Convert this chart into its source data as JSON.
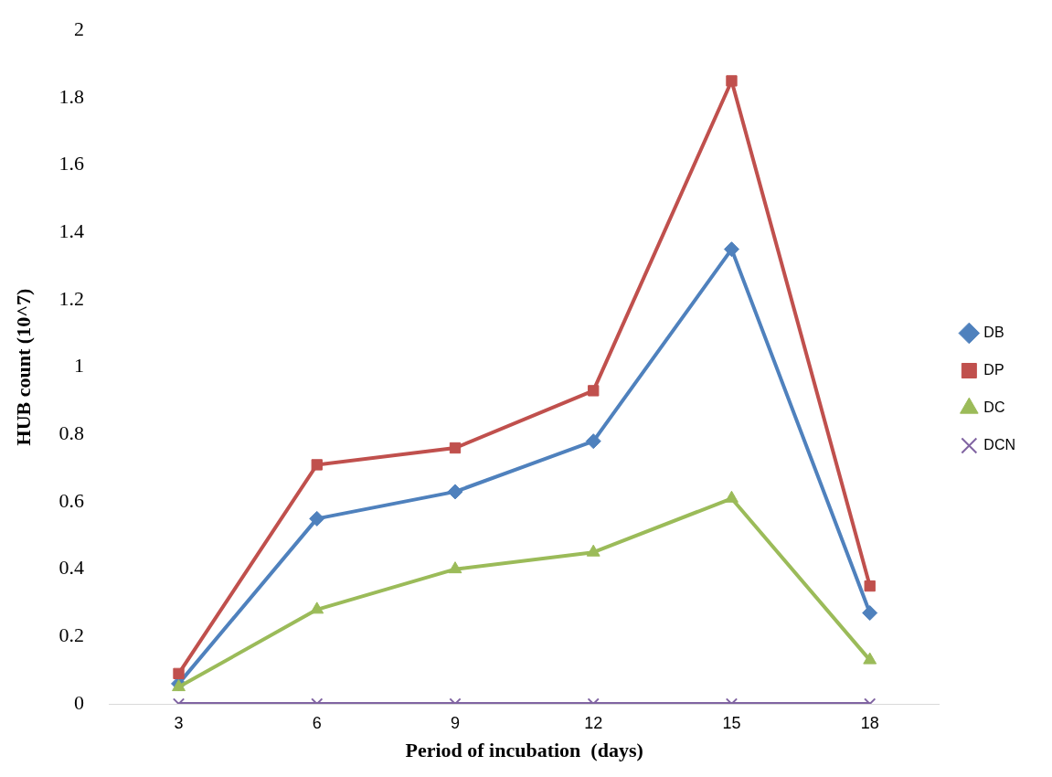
{
  "chart_data": {
    "type": "line",
    "xlabel": "Period of incubation  (days)",
    "ylabel": "HUB count (10^7)",
    "categories": [
      "3",
      "6",
      "9",
      "12",
      "15",
      "18"
    ],
    "series": [
      {
        "name": "DB",
        "color": "#4f81bd",
        "marker": "diamond",
        "values": [
          0.06,
          0.55,
          0.63,
          0.78,
          1.35,
          0.27
        ]
      },
      {
        "name": "DP",
        "color": "#c0504d",
        "marker": "square",
        "values": [
          0.09,
          0.71,
          0.76,
          0.93,
          1.85,
          0.35
        ]
      },
      {
        "name": "DC",
        "color": "#9bbb59",
        "marker": "triangle",
        "values": [
          0.05,
          0.28,
          0.4,
          0.45,
          0.61,
          0.13
        ]
      },
      {
        "name": "DCN",
        "color": "#8064a2",
        "marker": "cross",
        "values": [
          0,
          0,
          0,
          0,
          0,
          0
        ]
      }
    ],
    "ylim": [
      0,
      2
    ],
    "yticks": [
      0,
      0.2,
      0.4,
      0.6,
      0.8,
      1,
      1.2,
      1.4,
      1.6,
      1.8,
      2
    ],
    "grid": false,
    "legend": "right",
    "line_style": "solid"
  }
}
